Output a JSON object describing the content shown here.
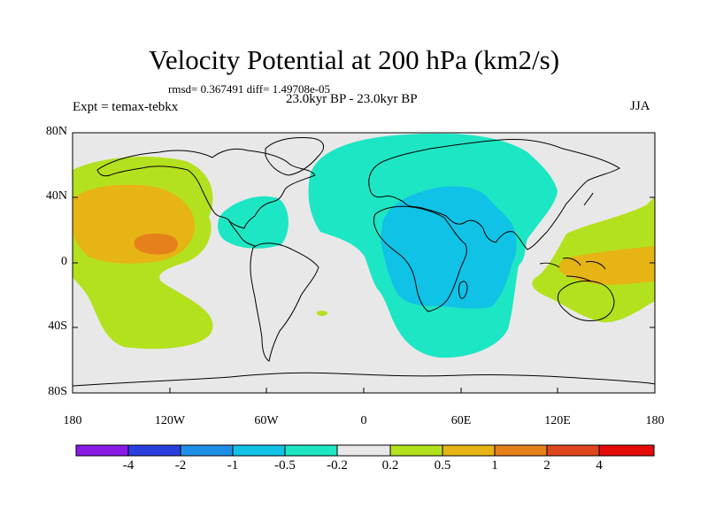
{
  "title": "Velocity Potential at 200 hPa (km2/s)",
  "stats": "rmsd= 0.367491 diff= 1.49708e-05",
  "experiment": "Expt = temax-tebkx",
  "subtitle": "23.0kyr BP - 23.0kyr BP",
  "season": "JJA",
  "lat_ticks": [
    "80N",
    "40N",
    "0",
    "40S",
    "80S"
  ],
  "lon_ticks": [
    "180",
    "120W",
    "60W",
    "0",
    "60E",
    "120E",
    "180"
  ],
  "colorbar": {
    "labels": [
      "-4",
      "-2",
      "-1",
      "-0.5",
      "-0.2",
      "0.2",
      "0.5",
      "1",
      "2",
      "4"
    ],
    "colors": [
      "#8a1ae6",
      "#2a3fe0",
      "#1e8fe6",
      "#10c2e6",
      "#1de6c4",
      "#e8e8e8",
      "#b4e11e",
      "#e6b414",
      "#e6801a",
      "#e0461e",
      "#e60a0a"
    ]
  },
  "colors": {
    "background": "#e8e8e8",
    "coast": "#000000"
  }
}
